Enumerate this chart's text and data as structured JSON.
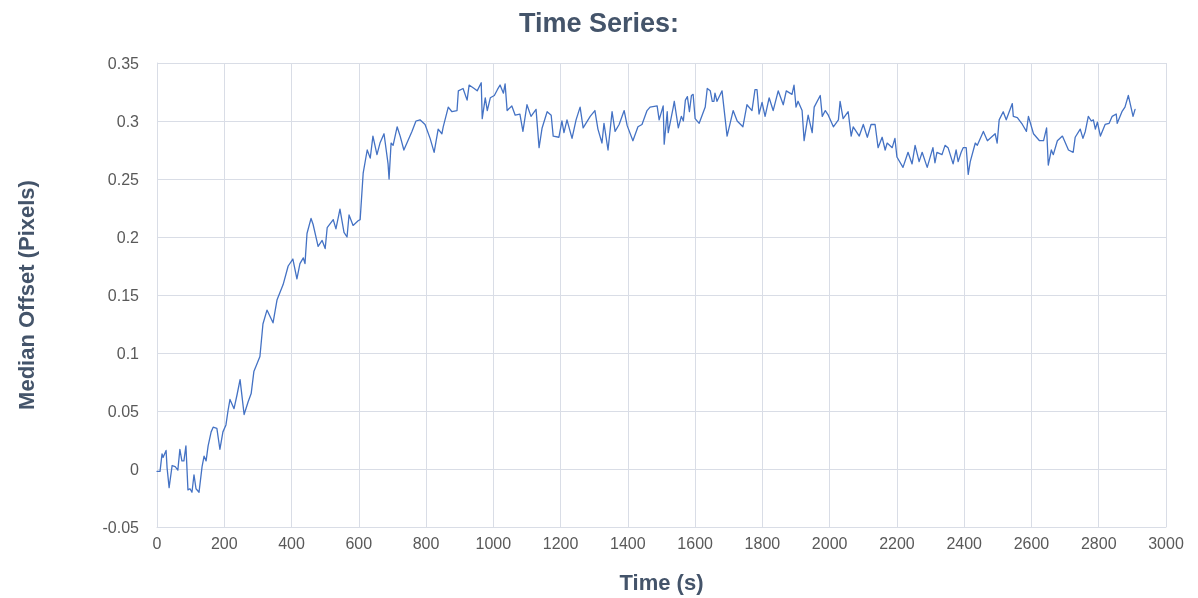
{
  "chart_data": {
    "type": "line",
    "title": "Time Series:",
    "xlabel": "Time (s)",
    "ylabel": "Median Offset (Pixels)",
    "x": [
      0,
      9,
      15,
      18,
      27,
      30,
      36,
      45,
      54,
      62,
      68,
      74,
      80,
      86,
      92,
      98,
      104,
      110,
      116,
      125,
      134,
      140,
      146,
      152,
      161,
      167,
      178,
      187,
      196,
      205,
      211,
      217,
      229,
      238,
      247,
      259,
      271,
      280,
      288,
      306,
      315,
      327,
      345,
      357,
      375,
      390,
      404,
      416,
      425,
      435,
      440,
      446,
      458,
      464,
      479,
      491,
      500,
      506,
      524,
      532,
      544,
      556,
      565,
      571,
      583,
      598,
      604,
      613,
      625,
      634,
      642,
      654,
      663,
      675,
      687,
      690,
      696,
      702,
      714,
      723,
      734,
      746,
      758,
      770,
      782,
      797,
      812,
      824,
      836,
      847,
      851,
      866,
      877,
      892,
      896,
      910,
      922,
      928,
      943,
      952,
      964,
      967,
      976,
      982,
      991,
      1003,
      1012,
      1020,
      1030,
      1035,
      1041,
      1055,
      1065,
      1079,
      1088,
      1100,
      1112,
      1127,
      1136,
      1145,
      1160,
      1172,
      1178,
      1195,
      1204,
      1210,
      1219,
      1234,
      1246,
      1258,
      1267,
      1288,
      1302,
      1311,
      1323,
      1329,
      1341,
      1353,
      1362,
      1374,
      1389,
      1398,
      1415,
      1430,
      1442,
      1457,
      1466,
      1487,
      1493,
      1505,
      1508,
      1517,
      1520,
      1535,
      1538,
      1550,
      1559,
      1565,
      1571,
      1577,
      1583,
      1589,
      1594,
      1600,
      1612,
      1630,
      1636,
      1645,
      1651,
      1656,
      1659,
      1665,
      1680,
      1695,
      1713,
      1725,
      1742,
      1754,
      1769,
      1778,
      1784,
      1790,
      1799,
      1808,
      1820,
      1832,
      1847,
      1862,
      1871,
      1888,
      1894,
      1900,
      1906,
      1918,
      1924,
      1936,
      1948,
      1954,
      1972,
      1978,
      1987,
      1996,
      2011,
      2026,
      2031,
      2040,
      2055,
      2064,
      2070,
      2088,
      2100,
      2112,
      2123,
      2135,
      2144,
      2156,
      2165,
      2171,
      2186,
      2194,
      2200,
      2218,
      2233,
      2245,
      2254,
      2266,
      2275,
      2290,
      2307,
      2313,
      2319,
      2334,
      2343,
      2352,
      2367,
      2376,
      2382,
      2391,
      2397,
      2406,
      2412,
      2418,
      2433,
      2439,
      2457,
      2469,
      2492,
      2498,
      2504,
      2516,
      2525,
      2543,
      2546,
      2558,
      2573,
      2585,
      2591,
      2606,
      2624,
      2636,
      2645,
      2650,
      2659,
      2665,
      2677,
      2692,
      2710,
      2724,
      2730,
      2745,
      2753,
      2760,
      2769,
      2778,
      2784,
      2790,
      2796,
      2805,
      2819,
      2831,
      2840,
      2852,
      2855,
      2869,
      2878,
      2888,
      2902,
      2908
    ],
    "series": [
      {
        "color": "#4472c4",
        "values": [
          -0.002,
          -0.002,
          0.013,
          0.01,
          0.016,
          0.001,
          -0.016,
          0.003,
          0.002,
          -0.001,
          0.017,
          0.007,
          0.007,
          0.02,
          -0.018,
          -0.017,
          -0.02,
          -0.005,
          -0.017,
          -0.02,
          0.002,
          0.011,
          0.007,
          0.02,
          0.032,
          0.036,
          0.035,
          0.017,
          0.032,
          0.038,
          0.05,
          0.06,
          0.052,
          0.064,
          0.077,
          0.047,
          0.058,
          0.065,
          0.084,
          0.097,
          0.125,
          0.137,
          0.126,
          0.146,
          0.159,
          0.175,
          0.181,
          0.164,
          0.177,
          0.182,
          0.177,
          0.203,
          0.216,
          0.211,
          0.192,
          0.197,
          0.19,
          0.208,
          0.215,
          0.207,
          0.224,
          0.204,
          0.2,
          0.219,
          0.21,
          0.214,
          0.215,
          0.255,
          0.275,
          0.268,
          0.287,
          0.271,
          0.281,
          0.289,
          0.263,
          0.25,
          0.281,
          0.279,
          0.295,
          0.287,
          0.275,
          0.283,
          0.291,
          0.3,
          0.301,
          0.297,
          0.285,
          0.273,
          0.293,
          0.289,
          0.295,
          0.312,
          0.308,
          0.309,
          0.326,
          0.328,
          0.318,
          0.331,
          0.328,
          0.326,
          0.333,
          0.302,
          0.32,
          0.309,
          0.32,
          0.322,
          0.327,
          0.331,
          0.324,
          0.332,
          0.309,
          0.313,
          0.305,
          0.306,
          0.291,
          0.314,
          0.304,
          0.31,
          0.277,
          0.294,
          0.308,
          0.305,
          0.287,
          0.286,
          0.3,
          0.29,
          0.301,
          0.285,
          0.301,
          0.312,
          0.294,
          0.304,
          0.309,
          0.293,
          0.281,
          0.298,
          0.275,
          0.308,
          0.291,
          0.297,
          0.309,
          0.296,
          0.283,
          0.295,
          0.297,
          0.309,
          0.312,
          0.313,
          0.301,
          0.313,
          0.28,
          0.308,
          0.29,
          0.312,
          0.317,
          0.294,
          0.304,
          0.3,
          0.318,
          0.321,
          0.308,
          0.322,
          0.323,
          0.302,
          0.298,
          0.312,
          0.328,
          0.326,
          0.317,
          0.317,
          0.324,
          0.317,
          0.326,
          0.287,
          0.309,
          0.3,
          0.295,
          0.314,
          0.309,
          0.327,
          0.327,
          0.306,
          0.316,
          0.304,
          0.32,
          0.309,
          0.326,
          0.314,
          0.326,
          0.323,
          0.331,
          0.312,
          0.317,
          0.309,
          0.283,
          0.305,
          0.29,
          0.312,
          0.322,
          0.304,
          0.309,
          0.305,
          0.295,
          0.301,
          0.317,
          0.302,
          0.308,
          0.287,
          0.295,
          0.287,
          0.297,
          0.286,
          0.297,
          0.297,
          0.277,
          0.286,
          0.275,
          0.281,
          0.277,
          0.285,
          0.269,
          0.26,
          0.273,
          0.263,
          0.279,
          0.265,
          0.273,
          0.26,
          0.277,
          0.264,
          0.273,
          0.271,
          0.279,
          0.277,
          0.263,
          0.275,
          0.265,
          0.273,
          0.277,
          0.277,
          0.254,
          0.265,
          0.281,
          0.279,
          0.291,
          0.283,
          0.289,
          0.281,
          0.301,
          0.308,
          0.301,
          0.315,
          0.304,
          0.303,
          0.297,
          0.291,
          0.304,
          0.289,
          0.283,
          0.283,
          0.294,
          0.262,
          0.275,
          0.271,
          0.283,
          0.287,
          0.275,
          0.273,
          0.286,
          0.293,
          0.285,
          0.291,
          0.304,
          0.3,
          0.301,
          0.293,
          0.299,
          0.287,
          0.297,
          0.298,
          0.304,
          0.306,
          0.298,
          0.308,
          0.312,
          0.322,
          0.304,
          0.31
        ]
      }
    ],
    "xlim": [
      0,
      3000
    ],
    "xticks": [
      0,
      200,
      400,
      600,
      800,
      1000,
      1200,
      1400,
      1600,
      1800,
      2000,
      2200,
      2400,
      2600,
      2800,
      3000
    ],
    "ylim": [
      -0.05,
      0.35
    ],
    "yticks": [
      -0.05,
      0,
      0.05,
      0.1,
      0.15,
      0.2,
      0.25,
      0.3,
      0.35
    ],
    "grid": true,
    "marker": "none",
    "line_style": "solid"
  }
}
